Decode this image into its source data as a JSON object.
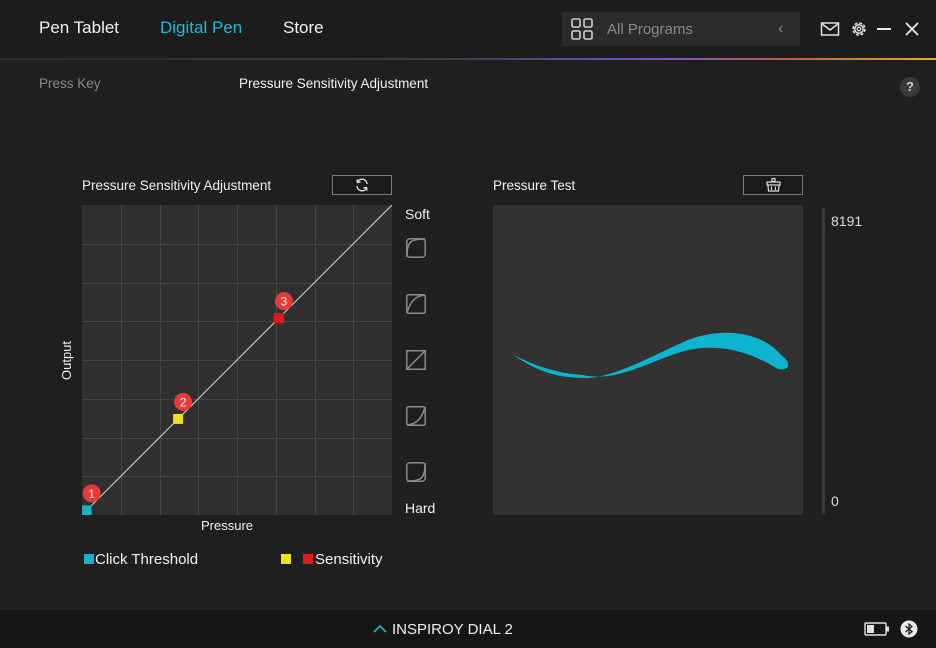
{
  "header": {
    "tabs": [
      {
        "label": "Pen Tablet",
        "active": false
      },
      {
        "label": "Digital Pen",
        "active": true
      },
      {
        "label": "Store",
        "active": false
      }
    ],
    "program_select": {
      "value": "All Programs",
      "icon": "grid-icon",
      "chevron": "‹"
    },
    "icons": [
      "mail-icon",
      "gear-icon",
      "minimize-icon",
      "close-icon"
    ],
    "accent_color": "#28b6d2"
  },
  "subheader": {
    "tabs": [
      {
        "label": "Press Key",
        "active": false
      },
      {
        "label": "Pressure Sensitivity Adjustment",
        "active": true
      }
    ],
    "help": "?"
  },
  "sensitivity": {
    "title": "Pressure Sensitivity Adjustment",
    "reset_icon": "refresh-icon",
    "xlabel": "Pressure",
    "ylabel": "Output",
    "soft_label": "Soft",
    "hard_label": "Hard",
    "curve_presets": [
      "curve-soft-2-icon",
      "curve-soft-1-icon",
      "curve-linear-icon",
      "curve-hard-1-icon",
      "curve-hard-2-icon"
    ],
    "points": [
      {
        "label": "1",
        "pressure": 0.015,
        "output": 0.015,
        "color": "#1ab0c8"
      },
      {
        "label": "2",
        "pressure": 0.31,
        "output": 0.31,
        "color": "#f0e020"
      },
      {
        "label": "3",
        "pressure": 0.635,
        "output": 0.635,
        "color": "#e01818"
      }
    ],
    "legend": {
      "click_threshold": "Click Threshold",
      "sensitivity": "Sensitivity",
      "threshold_color": "#1ab0c8",
      "sensitivity_colors": [
        "#f0e020",
        "#e01818"
      ]
    }
  },
  "pressure_test": {
    "title": "Pressure Test",
    "clear_icon": "clear-basket-icon",
    "max": "8191",
    "min": "0",
    "stroke_color": "#0eb4cf"
  },
  "footer": {
    "device": "INSPIROY DIAL 2",
    "icons": [
      "chevron-up-icon",
      "battery-icon",
      "bluetooth-icon"
    ]
  }
}
